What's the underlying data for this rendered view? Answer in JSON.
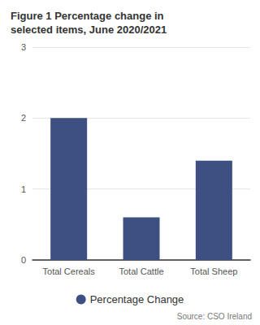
{
  "chart_data": {
    "type": "bar",
    "title": "Figure 1 Percentage change in selected items, June 2020/2021",
    "categories": [
      "Total Cereals",
      "Total Cattle",
      "Total Sheep"
    ],
    "series": [
      {
        "name": "Percentage Change",
        "color": "#3d5081",
        "values": [
          2.0,
          0.6,
          1.4
        ]
      }
    ],
    "ylim": [
      0,
      3
    ],
    "yticks": [
      0,
      1,
      2,
      3
    ],
    "grid": true,
    "legend": "bottom",
    "source": "Source: CSO Ireland"
  }
}
